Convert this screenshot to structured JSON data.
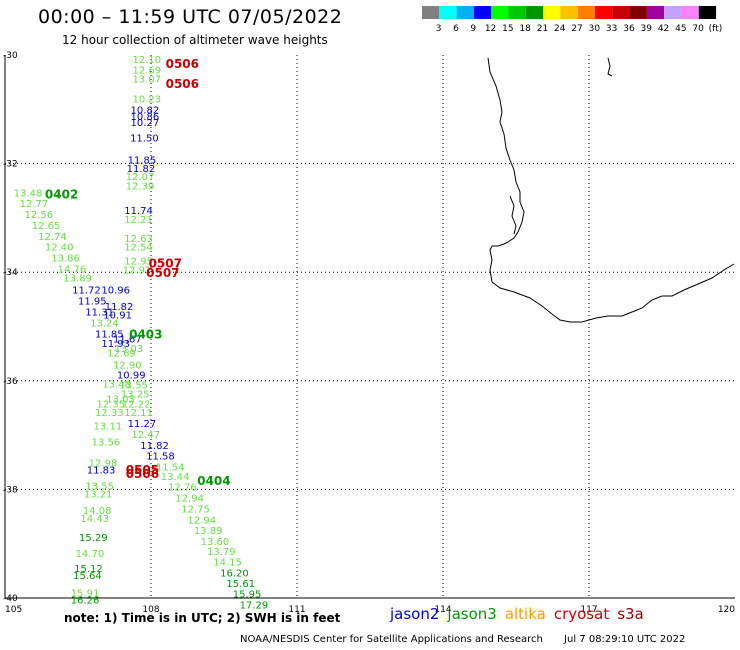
{
  "title": "00:00 – 11:59 UTC 07/05/2022",
  "subtitle": "12 hour collection of altimeter wave heights",
  "colorbar": {
    "colors": [
      "#808080",
      "#00ffff",
      "#00b0f0",
      "#0000ff",
      "#00ff00",
      "#00c800",
      "#009600",
      "#ffff00",
      "#ffc000",
      "#ff8000",
      "#ff0000",
      "#c80000",
      "#800000",
      "#a000a0",
      "#c8a0ff",
      "#ff80ff",
      "#000000"
    ],
    "labels": [
      "3",
      "6",
      "9",
      "12",
      "15",
      "18",
      "21",
      "24",
      "27",
      "30",
      "33",
      "36",
      "39",
      "42",
      "45",
      "70",
      "(ft)"
    ]
  },
  "axes": {
    "lon_ticks": [
      "105",
      "108",
      "111",
      "114",
      "117",
      "120"
    ],
    "lat_ticks": [
      "-30",
      "-32",
      "-34",
      "-36",
      "-38",
      "-40"
    ]
  },
  "satellite_colors": {
    "jason2": "#0000cc",
    "jason3": "#009900",
    "altika": "#ff9900",
    "cryosat": "#cc0000",
    "s3a": "#990000",
    "light": "#66dd44"
  },
  "observations": [
    {
      "lon": 107.62,
      "lat": -30.07,
      "v": "12.10",
      "c": "light"
    },
    {
      "lon": 107.62,
      "lat": -30.27,
      "v": "12.69",
      "c": "light"
    },
    {
      "lon": 107.62,
      "lat": -30.43,
      "v": "13.07",
      "c": "light"
    },
    {
      "lon": 107.62,
      "lat": -30.8,
      "v": "10.23",
      "c": "light"
    },
    {
      "lon": 107.58,
      "lat": -31.0,
      "v": "10.82",
      "c": "jason2"
    },
    {
      "lon": 107.58,
      "lat": -31.12,
      "v": "10.86",
      "c": "jason2"
    },
    {
      "lon": 107.58,
      "lat": -31.23,
      "v": "10.27",
      "c": "jason2"
    },
    {
      "lon": 107.57,
      "lat": -31.52,
      "v": "11.50",
      "c": "jason2"
    },
    {
      "lon": 107.52,
      "lat": -31.92,
      "v": "11.85",
      "c": "jason2"
    },
    {
      "lon": 107.5,
      "lat": -32.08,
      "v": "11.82",
      "c": "jason2"
    },
    {
      "lon": 107.48,
      "lat": -32.23,
      "v": "12.07",
      "c": "light"
    },
    {
      "lon": 107.48,
      "lat": -32.4,
      "v": "12.39",
      "c": "light"
    },
    {
      "lon": 107.45,
      "lat": -32.85,
      "v": "11.74",
      "c": "jason2"
    },
    {
      "lon": 107.45,
      "lat": -33.02,
      "v": "12.21",
      "c": "light"
    },
    {
      "lon": 107.45,
      "lat": -33.37,
      "v": "12.63",
      "c": "light"
    },
    {
      "lon": 107.45,
      "lat": -33.53,
      "v": "12.54",
      "c": "light"
    },
    {
      "lon": 107.45,
      "lat": -33.78,
      "v": "12.95",
      "c": "light"
    },
    {
      "lon": 107.42,
      "lat": -33.95,
      "v": "12.91",
      "c": "light"
    },
    {
      "lon": 105.18,
      "lat": -32.53,
      "v": "13.48",
      "c": "light"
    },
    {
      "lon": 105.3,
      "lat": -32.73,
      "v": "12.77",
      "c": "light"
    },
    {
      "lon": 105.4,
      "lat": -32.93,
      "v": "12.56",
      "c": "light"
    },
    {
      "lon": 105.55,
      "lat": -33.13,
      "v": "12.65",
      "c": "light"
    },
    {
      "lon": 105.68,
      "lat": -33.33,
      "v": "12.74",
      "c": "light"
    },
    {
      "lon": 105.82,
      "lat": -33.53,
      "v": "12.40",
      "c": "light"
    },
    {
      "lon": 105.95,
      "lat": -33.73,
      "v": "13.86",
      "c": "light"
    },
    {
      "lon": 106.08,
      "lat": -33.93,
      "v": "14.76",
      "c": "light"
    },
    {
      "lon": 106.2,
      "lat": -34.1,
      "v": "13.89",
      "c": "light"
    },
    {
      "lon": 106.38,
      "lat": -34.32,
      "v": "11.72",
      "c": "jason2"
    },
    {
      "lon": 106.5,
      "lat": -34.52,
      "v": "11.95",
      "c": "jason2"
    },
    {
      "lon": 106.65,
      "lat": -34.72,
      "v": "11.31",
      "c": "jason2"
    },
    {
      "lon": 106.75,
      "lat": -34.93,
      "v": "13.24",
      "c": "light"
    },
    {
      "lon": 106.85,
      "lat": -35.13,
      "v": "11.85",
      "c": "jason2"
    },
    {
      "lon": 106.98,
      "lat": -35.3,
      "v": "11.93",
      "c": "jason2"
    },
    {
      "lon": 107.1,
      "lat": -35.48,
      "v": "12.69",
      "c": "light"
    },
    {
      "lon": 107.22,
      "lat": -35.7,
      "v": "12.90",
      "c": "light"
    },
    {
      "lon": 107.3,
      "lat": -35.88,
      "v": "10.99",
      "c": "jason2"
    },
    {
      "lon": 107.35,
      "lat": -36.07,
      "v": "13.55",
      "c": "light"
    },
    {
      "lon": 107.38,
      "lat": -36.23,
      "v": "13.25",
      "c": "light"
    },
    {
      "lon": 107.4,
      "lat": -36.42,
      "v": "12.22",
      "c": "light"
    },
    {
      "lon": 107.45,
      "lat": -36.57,
      "v": "12.11",
      "c": "light"
    },
    {
      "lon": 107.52,
      "lat": -36.78,
      "v": "11.27",
      "c": "jason2"
    },
    {
      "lon": 107.6,
      "lat": -36.98,
      "v": "12.47",
      "c": "light"
    },
    {
      "lon": 107.78,
      "lat": -37.18,
      "v": "11.82",
      "c": "jason2"
    },
    {
      "lon": 107.9,
      "lat": -37.38,
      "v": "11.58",
      "c": "jason2"
    },
    {
      "lon": 108.1,
      "lat": -37.58,
      "v": "11.54",
      "c": "light"
    },
    {
      "lon": 108.2,
      "lat": -37.75,
      "v": "13.44",
      "c": "light"
    },
    {
      "lon": 108.35,
      "lat": -37.95,
      "v": "12.76",
      "c": "light"
    },
    {
      "lon": 108.5,
      "lat": -38.15,
      "v": "12.94",
      "c": "light"
    },
    {
      "lon": 108.62,
      "lat": -38.35,
      "v": "12.75",
      "c": "light"
    },
    {
      "lon": 108.75,
      "lat": -38.55,
      "v": "12.94",
      "c": "light"
    },
    {
      "lon": 108.88,
      "lat": -38.75,
      "v": "13.89",
      "c": "light"
    },
    {
      "lon": 109.02,
      "lat": -38.95,
      "v": "13.60",
      "c": "light"
    },
    {
      "lon": 109.15,
      "lat": -39.13,
      "v": "13.79",
      "c": "light"
    },
    {
      "lon": 109.28,
      "lat": -39.33,
      "v": "14.15",
      "c": "light"
    },
    {
      "lon": 109.42,
      "lat": -39.53,
      "v": "16.20",
      "c": "jason3"
    },
    {
      "lon": 109.55,
      "lat": -39.72,
      "v": "15.61",
      "c": "jason3"
    },
    {
      "lon": 109.68,
      "lat": -39.92,
      "v": "15.95",
      "c": "jason3"
    },
    {
      "lon": 109.82,
      "lat": -40.12,
      "v": "17.29",
      "c": "jason3"
    },
    {
      "lon": 106.98,
      "lat": -34.32,
      "v": "10.96",
      "c": "jason2"
    },
    {
      "lon": 107.05,
      "lat": -34.62,
      "v": "11.82",
      "c": "jason2"
    },
    {
      "lon": 107.02,
      "lat": -34.78,
      "v": "10.91",
      "c": "jason2"
    },
    {
      "lon": 107.22,
      "lat": -35.22,
      "v": "11.67",
      "c": "jason2"
    },
    {
      "lon": 107.25,
      "lat": -35.4,
      "v": "13.03",
      "c": "light"
    },
    {
      "lon": 107.0,
      "lat": -36.05,
      "v": "13.48",
      "c": "light"
    },
    {
      "lon": 107.08,
      "lat": -36.33,
      "v": "13.03",
      "c": "light"
    },
    {
      "lon": 106.88,
      "lat": -36.42,
      "v": "12.35",
      "c": "light"
    },
    {
      "lon": 106.85,
      "lat": -36.57,
      "v": "12.33",
      "c": "light"
    },
    {
      "lon": 106.82,
      "lat": -36.82,
      "v": "13.11",
      "c": "light"
    },
    {
      "lon": 106.78,
      "lat": -37.12,
      "v": "13.56",
      "c": "light"
    },
    {
      "lon": 106.72,
      "lat": -37.5,
      "v": "12.98",
      "c": "light"
    },
    {
      "lon": 106.68,
      "lat": -37.63,
      "v": "11.83",
      "c": "jason2"
    },
    {
      "lon": 106.65,
      "lat": -37.93,
      "v": "13.55",
      "c": "light"
    },
    {
      "lon": 106.62,
      "lat": -38.08,
      "v": "13.21",
      "c": "light"
    },
    {
      "lon": 106.6,
      "lat": -38.38,
      "v": "14.08",
      "c": "light"
    },
    {
      "lon": 106.55,
      "lat": -38.53,
      "v": "14.43",
      "c": "light"
    },
    {
      "lon": 106.52,
      "lat": -38.88,
      "v": "15.29",
      "c": "jason3"
    },
    {
      "lon": 106.45,
      "lat": -39.17,
      "v": "14.70",
      "c": "light"
    },
    {
      "lon": 106.42,
      "lat": -39.45,
      "v": "15.12",
      "c": "jason3"
    },
    {
      "lon": 106.4,
      "lat": -39.58,
      "v": "15.64",
      "c": "jason3"
    },
    {
      "lon": 106.35,
      "lat": -39.9,
      "v": "15.91",
      "c": "light"
    },
    {
      "lon": 106.35,
      "lat": -40.03,
      "v": "16.26",
      "c": "jason3"
    }
  ],
  "pass_labels": [
    {
      "lon": 108.3,
      "lat": -30.15,
      "v": "0506",
      "c": "cryosat"
    },
    {
      "lon": 108.3,
      "lat": -30.52,
      "v": "0506",
      "c": "cryosat"
    },
    {
      "lon": 105.82,
      "lat": -32.55,
      "v": "0402",
      "c": "jason3"
    },
    {
      "lon": 107.95,
      "lat": -33.82,
      "v": "0507",
      "c": "cryosat"
    },
    {
      "lon": 107.9,
      "lat": -34.0,
      "v": "0507",
      "c": "cryosat"
    },
    {
      "lon": 107.55,
      "lat": -35.13,
      "v": "0403",
      "c": "jason3"
    },
    {
      "lon": 107.48,
      "lat": -37.62,
      "v": "0505",
      "c": "cryosat"
    },
    {
      "lon": 107.48,
      "lat": -37.7,
      "v": "0506",
      "c": "cryosat"
    },
    {
      "lon": 108.95,
      "lat": -37.83,
      "v": "0404",
      "c": "jason3"
    }
  ],
  "note": "note: 1) Time is in UTC; 2) SWH is in feet",
  "satellites": [
    {
      "label": "jason2",
      "c": "jason2"
    },
    {
      "label": "jason3",
      "c": "jason3"
    },
    {
      "label": "altika",
      "c": "altika"
    },
    {
      "label": "cryosat",
      "c": "cryosat"
    },
    {
      "label": "s3a",
      "c": "s3a"
    }
  ],
  "credit": {
    "org": "NOAA/NESDIS Center for Satellite Applications and Research",
    "timestamp": "Jul  7 08:29:10 UTC 2022"
  }
}
